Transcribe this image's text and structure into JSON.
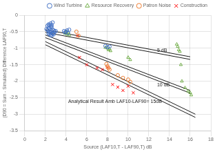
{
  "chart_data": {
    "type": "scatter",
    "xlabel": "Source (LAF10,T - LAF90,T) dB",
    "ylabel": "(D90 = Sum - Simulated) Difference LAF90,T",
    "xlim": [
      0,
      18
    ],
    "ylim": [
      -3.5,
      0
    ],
    "xticks": [
      0,
      2,
      4,
      6,
      8,
      10,
      12,
      14,
      16,
      18
    ],
    "yticks": [
      0,
      -0.5,
      -1,
      -1.5,
      -2,
      -2.5,
      -3,
      -3.5
    ],
    "grid": true,
    "legend": "upper right",
    "series": [
      {
        "name": "Wind Turbine",
        "color": "#4472c4",
        "marker": "circle",
        "x": [
          2.1,
          2.2,
          2.3,
          2.3,
          2.4,
          2.4,
          2.5,
          2.5,
          2.6,
          2.6,
          2.7,
          2.7,
          2.8,
          2.8,
          2.3,
          2.4,
          2.5,
          2.6,
          2.7,
          2.8,
          2.9,
          3.0,
          2.2,
          2.3,
          2.4,
          2.5,
          2.6,
          2.7,
          3.8,
          3.9,
          4.0,
          4.1,
          4.2,
          4.3,
          7.8,
          8.0,
          8.2
        ],
        "values": [
          -0.42,
          -0.45,
          -0.48,
          -0.38,
          -0.5,
          -0.4,
          -0.52,
          -0.35,
          -0.47,
          -0.3,
          -0.44,
          -0.55,
          -0.46,
          -0.58,
          -0.55,
          -0.58,
          -0.6,
          -0.62,
          -0.56,
          -0.53,
          -0.5,
          -0.48,
          -0.32,
          -0.28,
          -0.3,
          -0.25,
          -0.35,
          -0.22,
          -0.48,
          -0.52,
          -0.5,
          -0.46,
          -0.54,
          -0.44,
          -0.93,
          -0.97,
          -0.95
        ]
      },
      {
        "name": "Resource Recovery",
        "color": "#70ad47",
        "marker": "triangle",
        "x": [
          3.9,
          4.0,
          4.1,
          4.2,
          4.3,
          7.8,
          8.0,
          8.1,
          8.2,
          8.3,
          10.0,
          10.2,
          14.7,
          14.8,
          14.9,
          15.0,
          15.1,
          15.2,
          15.5,
          15.8,
          16.0,
          16.1
        ],
        "values": [
          -0.55,
          -0.5,
          -0.58,
          -0.52,
          -0.6,
          -0.98,
          -1.0,
          -1.05,
          -1.02,
          -1.08,
          -1.28,
          -1.35,
          -0.88,
          -0.95,
          -1.05,
          -1.1,
          -1.5,
          -2.0,
          -2.2,
          -2.3,
          -2.35,
          -2.42
        ]
      },
      {
        "name": "Patron Noise",
        "color": "#ed7d31",
        "marker": "circle",
        "x": [
          5.0,
          5.2,
          7.9,
          8.0,
          8.1,
          8.2,
          9.0,
          9.5,
          10.0,
          10.2
        ],
        "values": [
          -0.5,
          -0.62,
          -1.48,
          -1.55,
          -1.6,
          -1.65,
          -1.82,
          -1.9,
          -1.95,
          -2.02
        ]
      },
      {
        "name": "Construction",
        "color": "#ff0000",
        "marker": "x",
        "x": [
          5.1,
          5.3,
          6.0,
          7.0,
          7.5,
          8.0,
          8.5,
          9.0,
          9.5,
          10.0,
          10.5
        ],
        "values": [
          -0.62,
          -1.28,
          -1.5,
          -1.6,
          -1.65,
          -1.58,
          -2.1,
          -2.18,
          -2.28,
          -2.15,
          -2.35
        ]
      },
      {
        "type": "line",
        "color": "#1a1a1a",
        "x": [
          2.0,
          16.0
        ],
        "values": [
          -0.44,
          -1.26
        ]
      },
      {
        "type": "line",
        "color": "#1a1a1a",
        "x": [
          2.0,
          16.0
        ],
        "values": [
          -0.52,
          -1.34
        ]
      },
      {
        "type": "line",
        "color": "#1a1a1a",
        "x": [
          2.0,
          16.0
        ],
        "values": [
          -0.6,
          -2.28
        ]
      },
      {
        "type": "line",
        "color": "#1a1a1a",
        "x": [
          2.0,
          16.0
        ],
        "values": [
          -0.68,
          -2.36
        ]
      },
      {
        "type": "line",
        "color": "#1a1a1a",
        "x": [
          2.0,
          16.5
        ],
        "values": [
          -0.8,
          -3.0
        ]
      },
      {
        "type": "line",
        "color": "#1a1a1a",
        "x": [
          2.0,
          16.5
        ],
        "values": [
          -0.896,
          -3.096
        ]
      }
    ],
    "annotations": [
      {
        "text": "5 dB",
        "x": 12.8,
        "y": -1.06,
        "color": "#1a1a1a"
      },
      {
        "text": "10 dB",
        "x": 12.8,
        "y": -2.12,
        "color": "#1a1a1a"
      },
      {
        "text": "Analytical Result Amb LAF10-LAF90= 15dB",
        "x": 4.2,
        "y": -2.62,
        "color": "#1a1a1a"
      }
    ]
  }
}
